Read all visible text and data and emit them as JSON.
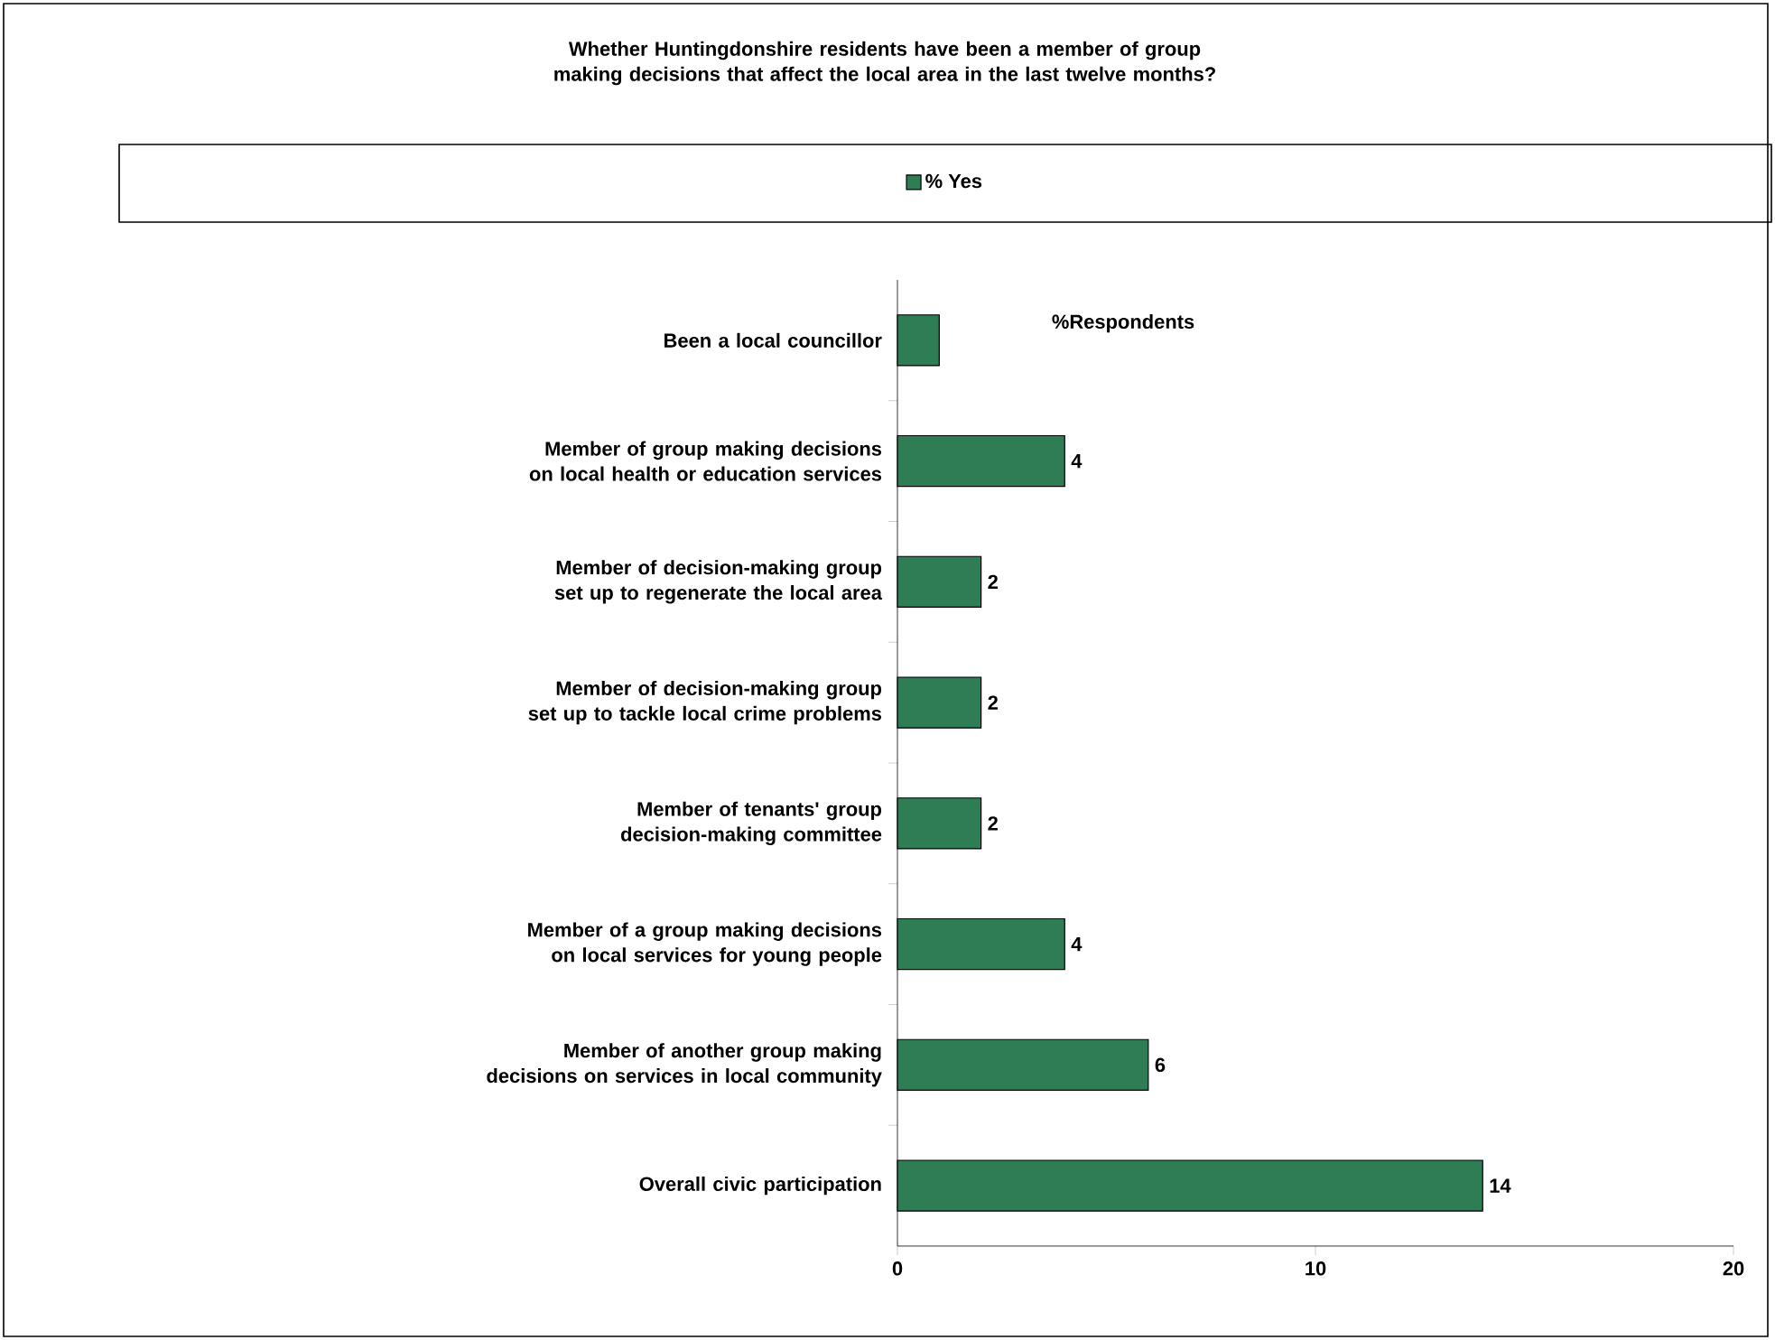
{
  "chart_data": {
    "type": "bar",
    "orientation": "horizontal",
    "title": "Whether Huntingdonshire residents have been a member of group making decisions that affect the local area in the last twelve months?",
    "xlabel": "%Respondents",
    "categories": [
      "Been a local councillor",
      "Member of group making decisions on local health or education services",
      "Member of decision-making group set up to regenerate the local area",
      "Member of decision-making group set up to tackle local crime problems",
      "Member of tenants' group decision-making committee",
      "Member of a group making decisions on local services for young people",
      "Member of another group making decisions on services in local community",
      "Overall civic participation"
    ],
    "series": [
      {
        "name": "% Yes",
        "color": "#2e7d55",
        "values": [
          1,
          4,
          2,
          2,
          2,
          4,
          6,
          14
        ],
        "value_labels": [
          null,
          "4",
          "2",
          "2",
          "2",
          "4",
          "6",
          "14"
        ]
      }
    ],
    "xlim": [
      0,
      20
    ],
    "xticks": [
      0,
      10,
      20
    ],
    "legend": "top"
  }
}
